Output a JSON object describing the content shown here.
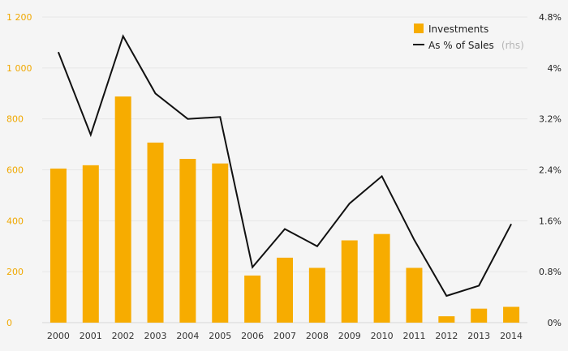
{
  "chart_data": {
    "type": "bar+line",
    "title": "",
    "xlabel": "",
    "ylabel": "",
    "categories": [
      "2000",
      "2001",
      "2002",
      "2003",
      "2004",
      "2005",
      "2006",
      "2007",
      "2008",
      "2009",
      "2010",
      "2011",
      "2012",
      "2013",
      "2014"
    ],
    "series": [
      {
        "name": "Investments",
        "type": "bar",
        "axis": "left",
        "color": "#f7ac00",
        "values": [
          605,
          618,
          888,
          707,
          643,
          625,
          185,
          255,
          215,
          323,
          348,
          215,
          25,
          55,
          62
        ]
      },
      {
        "name": "As % of Sales",
        "type": "line",
        "axis": "right",
        "color": "#111111",
        "values": [
          4.25,
          2.95,
          4.5,
          3.6,
          3.2,
          3.23,
          0.87,
          1.47,
          1.2,
          1.87,
          2.3,
          1.3,
          0.42,
          0.58,
          1.55
        ]
      }
    ],
    "y_left": {
      "ylim": [
        0,
        1200
      ],
      "ticks": [
        0,
        200,
        400,
        600,
        800,
        1000,
        1200
      ],
      "tick_labels": [
        "0",
        "200",
        "400",
        "600",
        "800",
        "1 000",
        "1 200"
      ],
      "color": "#f0a800"
    },
    "y_right": {
      "ylim": [
        0,
        4.8
      ],
      "ticks": [
        0,
        0.8,
        1.6,
        2.4,
        3.2,
        4,
        4.8
      ],
      "tick_labels": [
        "0%",
        "0.8%",
        "1.6%",
        "2.4%",
        "3.2%",
        "4%",
        "4.8%"
      ],
      "color": "#222222"
    },
    "grid": true,
    "legend": {
      "position": "top-right",
      "items": [
        {
          "label": "Investments",
          "note": ""
        },
        {
          "label": "As % of Sales",
          "note": "(rhs)"
        }
      ]
    }
  }
}
